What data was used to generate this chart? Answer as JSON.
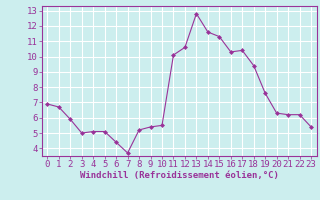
{
  "x": [
    0,
    1,
    2,
    3,
    4,
    5,
    6,
    7,
    8,
    9,
    10,
    11,
    12,
    13,
    14,
    15,
    16,
    17,
    18,
    19,
    20,
    21,
    22,
    23
  ],
  "y": [
    6.9,
    6.7,
    5.9,
    5.0,
    5.1,
    5.1,
    4.4,
    3.7,
    5.2,
    5.4,
    5.5,
    10.1,
    10.6,
    12.8,
    11.6,
    11.3,
    10.3,
    10.4,
    9.4,
    7.6,
    6.3,
    6.2,
    6.2,
    5.4
  ],
  "line_color": "#993399",
  "marker": "D",
  "marker_size": 2,
  "bg_color": "#cceeee",
  "grid_color": "#ffffff",
  "xlabel": "Windchill (Refroidissement éolien,°C)",
  "xlabel_color": "#993399",
  "tick_color": "#993399",
  "spine_color": "#993399",
  "ylim": [
    3.5,
    13.3
  ],
  "xlim": [
    -0.5,
    23.5
  ],
  "yticks": [
    4,
    5,
    6,
    7,
    8,
    9,
    10,
    11,
    12,
    13
  ],
  "xticks": [
    0,
    1,
    2,
    3,
    4,
    5,
    6,
    7,
    8,
    9,
    10,
    11,
    12,
    13,
    14,
    15,
    16,
    17,
    18,
    19,
    20,
    21,
    22,
    23
  ],
  "tick_fontsize": 6.5,
  "xlabel_fontsize": 6.5
}
